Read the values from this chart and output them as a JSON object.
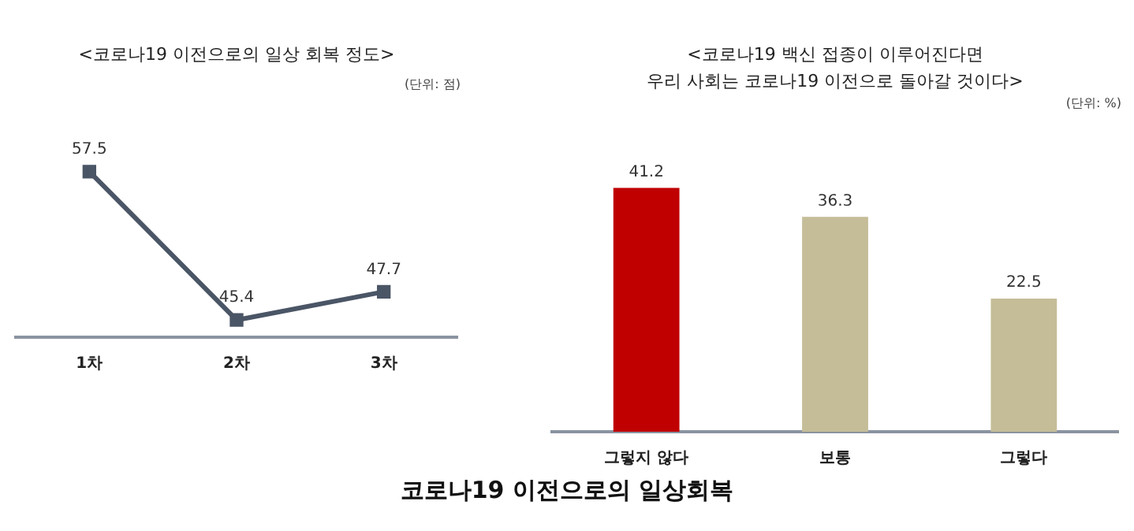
{
  "chart_data": [
    {
      "type": "line",
      "title": "<코로나19 이전으로의 일상 회복 정도>",
      "annotations": [
        "(단위: 점)",
        "코로나19 이전으로의 일상회복"
      ],
      "categories": [
        "1차",
        "2차",
        "3차"
      ],
      "series": [
        {
          "color": "#4a5566",
          "values": [
            57.5,
            45.4,
            47.7
          ]
        }
      ],
      "marker": "square",
      "data_labels": true,
      "grid": false,
      "legend": false,
      "tick_labels": "x"
    },
    {
      "type": "bar",
      "title": "<코로나19 백신 접종이 이루어진다면\n우리 사회는 코로나19 이전으로 돌아갈 것이다>",
      "annotations": [
        "(단위: %)"
      ],
      "categories": [
        "그렇지 않다",
        "보통",
        "그렇다"
      ],
      "values": [
        41.2,
        36.3,
        22.5
      ],
      "colors": [
        "#c00000",
        "#c5bd98",
        "#c5bd98"
      ],
      "data_labels": true,
      "grid": false,
      "legend": false,
      "tick_labels": "x"
    }
  ]
}
